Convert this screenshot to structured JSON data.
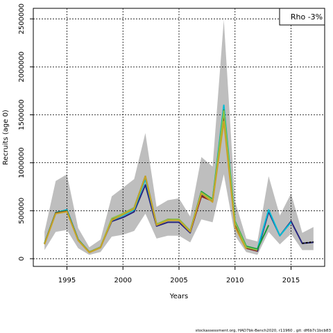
{
  "chart_data": {
    "type": "line",
    "title": "",
    "xlabel": "Years",
    "ylabel": "Recruits (age 0)",
    "xlim": [
      1992,
      2018
    ],
    "ylim": [
      -80000,
      2610000
    ],
    "x_ticks": [
      1995,
      2000,
      2005,
      2010,
      2015
    ],
    "y_ticks": [
      0,
      500000,
      1000000,
      1500000,
      2000000,
      2500000
    ],
    "grid": true,
    "legend": {
      "placement": "top-right",
      "text": "Rho -3%"
    },
    "footer": "stockassessment.org, HAD7bk-Bench2020, r11960 , git: df6b7c1bcb83",
    "confidence_band": {
      "color": "#bebebe",
      "x": [
        1993,
        1994,
        1995,
        1996,
        1997,
        1998,
        1999,
        2000,
        2001,
        2002,
        2003,
        2004,
        2005,
        2006,
        2007,
        2008,
        2009,
        2010,
        2011,
        2012,
        2013,
        2014,
        2015,
        2016,
        2017
      ],
      "lower": [
        90000,
        280000,
        300000,
        110000,
        40000,
        70000,
        230000,
        250000,
        290000,
        470000,
        210000,
        240000,
        240000,
        170000,
        410000,
        380000,
        880000,
        240000,
        70000,
        40000,
        280000,
        150000,
        260000,
        90000,
        90000
      ],
      "upper": [
        280000,
        810000,
        880000,
        320000,
        120000,
        200000,
        650000,
        740000,
        830000,
        1310000,
        540000,
        610000,
        630000,
        440000,
        1060000,
        960000,
        2490000,
        600000,
        210000,
        180000,
        860000,
        450000,
        680000,
        270000,
        330000
      ]
    },
    "series": [
      {
        "color": "#26247f",
        "x": [
          1993,
          1994,
          1995,
          1996,
          1997,
          1998,
          1999,
          2000,
          2001,
          2002,
          2003,
          2004,
          2005,
          2006,
          2007,
          2008,
          2009,
          2010,
          2011,
          2012,
          2013,
          2014,
          2015,
          2016,
          2017
        ],
        "values": [
          160000,
          480000,
          510000,
          200000,
          70000,
          120000,
          390000,
          430000,
          490000,
          770000,
          340000,
          380000,
          380000,
          270000,
          660000,
          600000,
          1500000,
          370000,
          120000,
          80000,
          490000,
          240000,
          390000,
          160000,
          170000
        ]
      },
      {
        "color": "#00bcd4",
        "x": [
          1993,
          1994,
          1995,
          1996,
          1997,
          1998,
          1999,
          2000,
          2001,
          2002,
          2003,
          2004,
          2005,
          2006,
          2007,
          2008,
          2009,
          2010,
          2011,
          2012,
          2013,
          2014,
          2015
        ],
        "values": [
          160000,
          480000,
          510000,
          200000,
          70000,
          120000,
          400000,
          450000,
          510000,
          830000,
          360000,
          400000,
          400000,
          290000,
          680000,
          620000,
          1600000,
          390000,
          130000,
          100000,
          510000,
          240000,
          380000
        ]
      },
      {
        "color": "#1a9a3a",
        "x": [
          1993,
          1994,
          1995,
          1996,
          1997,
          1998,
          1999,
          2000,
          2001,
          2002,
          2003,
          2004,
          2005,
          2006,
          2007,
          2008,
          2009,
          2010,
          2011,
          2012,
          2013
        ],
        "values": [
          160000,
          480000,
          500000,
          200000,
          70000,
          120000,
          410000,
          470000,
          530000,
          860000,
          360000,
          410000,
          410000,
          290000,
          700000,
          620000,
          1550000,
          390000,
          130000,
          100000,
          350000
        ]
      },
      {
        "color": "#8b2323",
        "x": [
          1993,
          1994,
          1995,
          1996,
          1997,
          1998,
          1999,
          2000,
          2001,
          2002,
          2003,
          2004,
          2005,
          2006,
          2007,
          2008,
          2009,
          2010,
          2011,
          2012
        ],
        "values": [
          155000,
          475000,
          495000,
          195000,
          70000,
          120000,
          410000,
          470000,
          530000,
          860000,
          355000,
          410000,
          405000,
          285000,
          650000,
          600000,
          1480000,
          360000,
          110000,
          80000
        ]
      },
      {
        "color": "#8bc34a",
        "x": [
          1993,
          1994,
          1995,
          1996,
          1997,
          1998,
          1999,
          2000,
          2001,
          2002,
          2003,
          2004,
          2005,
          2006,
          2007,
          2008,
          2009,
          2010,
          2011,
          2012
        ],
        "values": [
          155000,
          470000,
          490000,
          195000,
          70000,
          120000,
          420000,
          470000,
          530000,
          860000,
          360000,
          410000,
          410000,
          290000,
          690000,
          610000,
          1540000,
          380000,
          120000,
          90000
        ]
      },
      {
        "color": "#c9a227",
        "x": [
          1993,
          1994,
          1995,
          1996,
          1997,
          1998,
          1999,
          2000,
          2001,
          2002,
          2003,
          2004,
          2005,
          2006,
          2007,
          2008,
          2009,
          2010,
          2011
        ],
        "values": [
          150000,
          470000,
          490000,
          190000,
          65000,
          115000,
          400000,
          460000,
          520000,
          860000,
          350000,
          400000,
          400000,
          280000,
          680000,
          590000,
          1430000,
          330000,
          100000
        ]
      }
    ],
    "projection": {
      "color": "#000000",
      "x": [
        2016,
        2017
      ],
      "values": [
        160000,
        175000
      ]
    }
  }
}
